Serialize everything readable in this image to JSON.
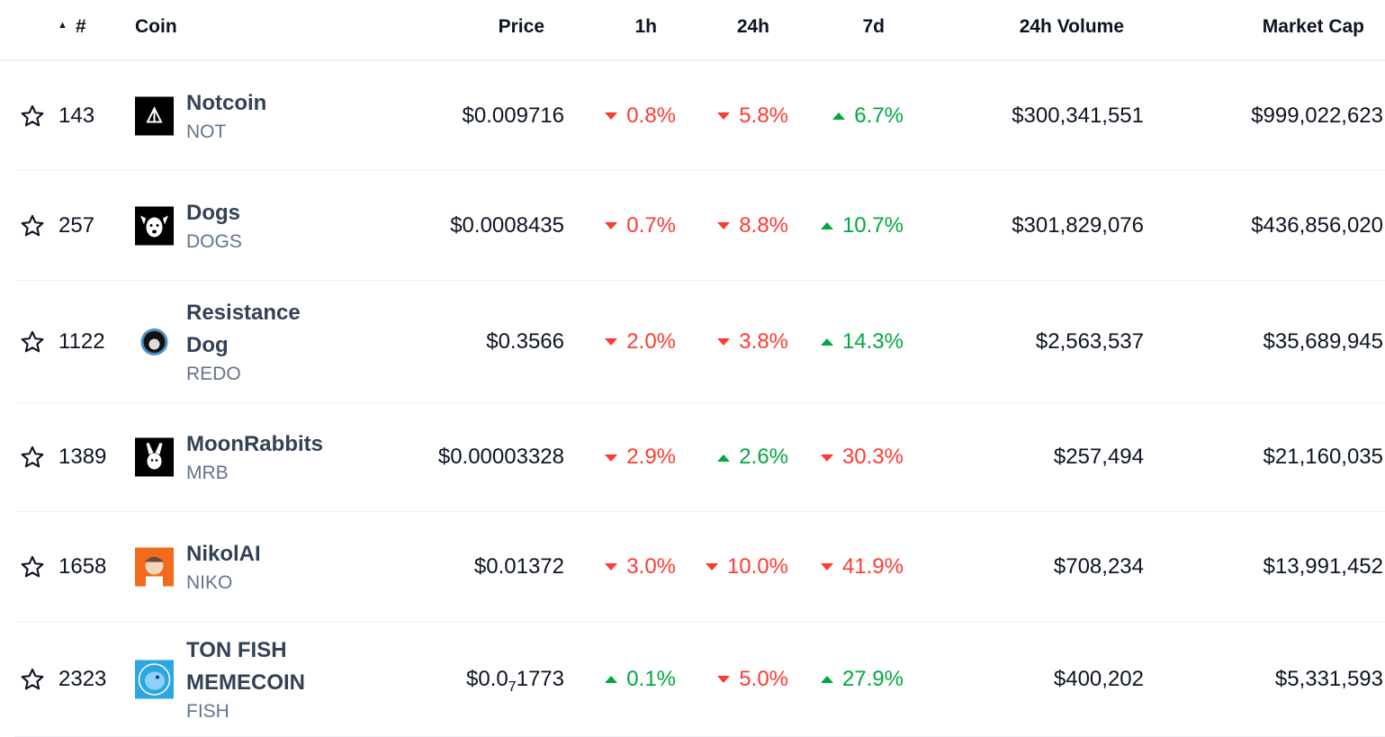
{
  "header": {
    "rank": "#",
    "coin": "Coin",
    "price": "Price",
    "h1": "1h",
    "h24": "24h",
    "d7": "7d",
    "volume": "24h Volume",
    "mcap": "Market Cap"
  },
  "colors": {
    "up": "#00a83e",
    "down": "#ff3a33"
  },
  "rows": [
    {
      "rank": "143",
      "name": [
        "Notcoin"
      ],
      "symbol": "NOT",
      "price": "$0.009716",
      "h1": {
        "v": "0.8%",
        "dir": "down"
      },
      "h24": {
        "v": "5.8%",
        "dir": "down"
      },
      "d7": {
        "v": "6.7%",
        "dir": "up"
      },
      "volume": "$300,341,551",
      "mcap": "$999,022,623",
      "logo": "notcoin-logo",
      "logo_bg": "#000000"
    },
    {
      "rank": "257",
      "name": [
        "Dogs"
      ],
      "symbol": "DOGS",
      "price": "$0.0008435",
      "h1": {
        "v": "0.7%",
        "dir": "down"
      },
      "h24": {
        "v": "8.8%",
        "dir": "down"
      },
      "d7": {
        "v": "10.7%",
        "dir": "up"
      },
      "volume": "$301,829,076",
      "mcap": "$436,856,020",
      "logo": "dogs-logo",
      "logo_bg": "#000000"
    },
    {
      "rank": "1122",
      "name": [
        "Resistance",
        "Dog"
      ],
      "symbol": "REDO",
      "price": "$0.3566",
      "h1": {
        "v": "2.0%",
        "dir": "down"
      },
      "h24": {
        "v": "3.8%",
        "dir": "down"
      },
      "d7": {
        "v": "14.3%",
        "dir": "up"
      },
      "volume": "$2,563,537",
      "mcap": "$35,689,945",
      "logo": "resistance-dog-logo",
      "logo_bg": "#ffffff"
    },
    {
      "rank": "1389",
      "name": [
        "MoonRabbits"
      ],
      "symbol": "MRB",
      "price": "$0.00003328",
      "h1": {
        "v": "2.9%",
        "dir": "down"
      },
      "h24": {
        "v": "2.6%",
        "dir": "up"
      },
      "d7": {
        "v": "30.3%",
        "dir": "down"
      },
      "volume": "$257,494",
      "mcap": "$21,160,035",
      "logo": "moonrabbits-logo",
      "logo_bg": "#000000"
    },
    {
      "rank": "1658",
      "name": [
        "NikolAI"
      ],
      "symbol": "NIKO",
      "price": "$0.01372",
      "h1": {
        "v": "3.0%",
        "dir": "down"
      },
      "h24": {
        "v": "10.0%",
        "dir": "down"
      },
      "d7": {
        "v": "41.9%",
        "dir": "down"
      },
      "volume": "$708,234",
      "mcap": "$13,991,452",
      "logo": "nikolai-logo",
      "logo_bg": "#f26a1b"
    },
    {
      "rank": "2323",
      "name": [
        "TON FISH",
        "MEMECOIN"
      ],
      "symbol": "FISH",
      "price": "$0.0",
      "price_sub": "7",
      "price_rest": "1773",
      "h1": {
        "v": "0.1%",
        "dir": "up"
      },
      "h24": {
        "v": "5.0%",
        "dir": "down"
      },
      "d7": {
        "v": "27.9%",
        "dir": "up"
      },
      "volume": "$400,202",
      "mcap": "$5,331,593",
      "logo": "ton-fish-logo",
      "logo_bg": "#2ea6df"
    }
  ]
}
